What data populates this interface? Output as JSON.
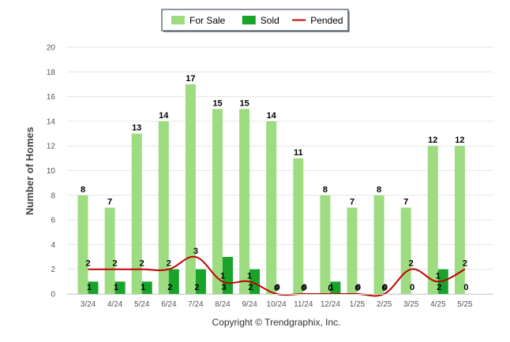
{
  "chart_data": {
    "type": "bar",
    "ylabel": "Number of Homes",
    "xlabel": "",
    "ylim": [
      0,
      20
    ],
    "yticks": [
      0,
      2,
      4,
      6,
      8,
      10,
      12,
      14,
      16,
      18,
      20
    ],
    "grid": true,
    "legend_position": "top-center",
    "categories": [
      "3/24",
      "4/24",
      "5/24",
      "6/24",
      "7/24",
      "8/24",
      "9/24",
      "10/24",
      "11/24",
      "12/24",
      "1/25",
      "2/25",
      "3/25",
      "4/25",
      "5/25"
    ],
    "series": [
      {
        "name": "For Sale",
        "type": "bar",
        "color": "#9edc82",
        "values": [
          8,
          7,
          13,
          14,
          17,
          15,
          15,
          14,
          11,
          8,
          7,
          8,
          7,
          12,
          12
        ]
      },
      {
        "name": "Sold",
        "type": "bar",
        "color": "#1aa32b",
        "values": [
          1,
          1,
          1,
          2,
          2,
          3,
          2,
          0,
          0,
          1,
          0,
          0,
          0,
          2,
          0
        ]
      },
      {
        "name": "Pended",
        "type": "line",
        "color": "#c00000",
        "values": [
          2,
          2,
          2,
          2,
          3,
          1,
          1,
          0,
          0,
          0,
          0,
          0,
          2,
          1,
          2
        ]
      }
    ]
  },
  "footer": {
    "copyright": "Copyright © Trendgraphix, Inc."
  }
}
